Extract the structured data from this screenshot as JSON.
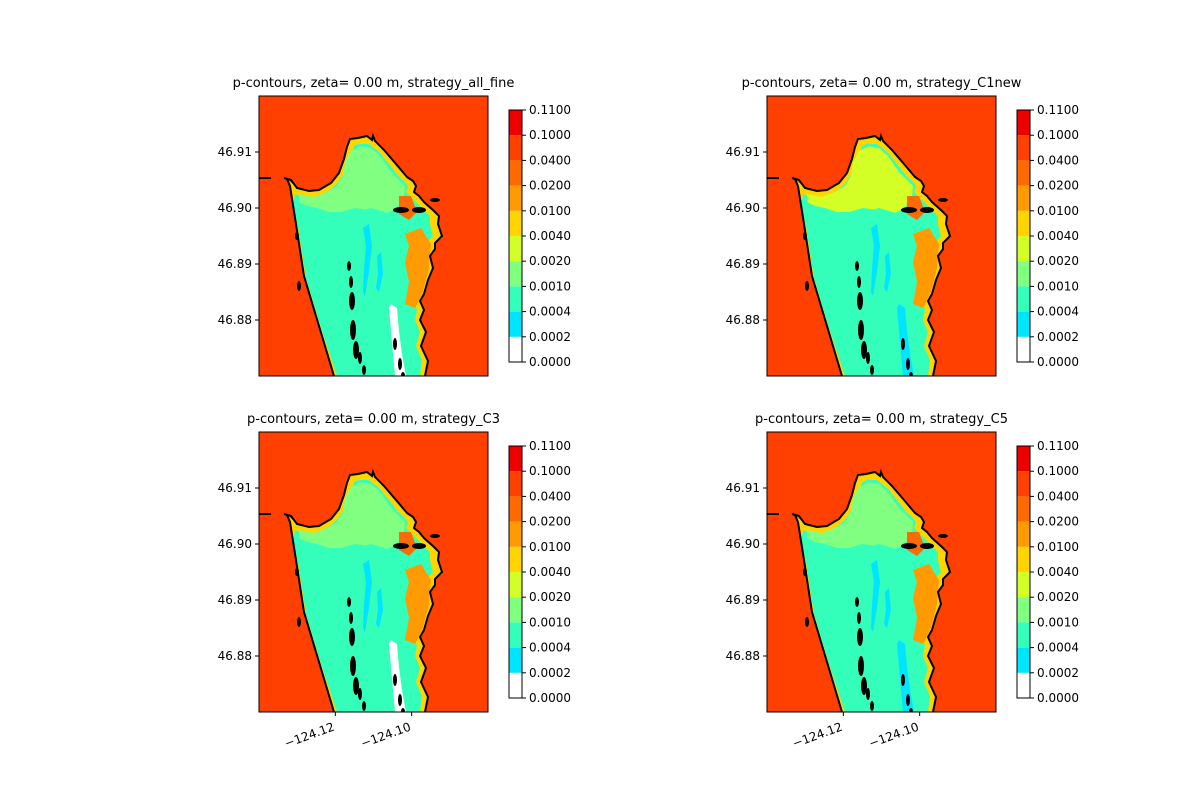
{
  "figure": {
    "background": "#ffffff",
    "sea_color": "#ff4000",
    "coast_color": "#000000"
  },
  "colorbar": {
    "levels": [
      "0.0000",
      "0.0002",
      "0.0004",
      "0.0010",
      "0.0020",
      "0.0040",
      "0.0100",
      "0.0200",
      "0.0400",
      "0.1000",
      "0.1100"
    ],
    "colors": [
      "#ffffff",
      "#00e5ff",
      "#33ffbb",
      "#80ff80",
      "#d4ff26",
      "#ffd400",
      "#ff9a00",
      "#ff6a00",
      "#ff4000",
      "#ee0000"
    ]
  },
  "chart_data": [
    {
      "type": "heatmap",
      "title": "p-contours, zeta= 0.00 m, strategy_all_fine",
      "yticks": [
        "46.91",
        "46.90",
        "46.89",
        "46.88"
      ],
      "ytick_values": [
        46.91,
        46.9,
        46.89,
        46.88
      ],
      "xticks": [],
      "xtick_values": [
        -124.12,
        -124.1
      ],
      "xlim": [
        -124.14,
        -124.08
      ],
      "ylim": [
        46.87,
        46.92
      ],
      "dominant_level": "0.0010-0.0020",
      "has_gap_band": true
    },
    {
      "type": "heatmap",
      "title": "p-contours, zeta= 0.00 m, strategy_C1new",
      "yticks": [
        "46.91",
        "46.90",
        "46.89",
        "46.88"
      ],
      "ytick_values": [
        46.91,
        46.9,
        46.89,
        46.88
      ],
      "xticks": [],
      "xtick_values": [
        -124.12,
        -124.1
      ],
      "xlim": [
        -124.14,
        -124.08
      ],
      "ylim": [
        46.87,
        46.92
      ],
      "dominant_level": "0.0004-0.0010",
      "has_gap_band": false
    },
    {
      "type": "heatmap",
      "title": "p-contours, zeta= 0.00 m, strategy_C3",
      "yticks": [
        "46.91",
        "46.90",
        "46.89",
        "46.88"
      ],
      "ytick_values": [
        46.91,
        46.9,
        46.89,
        46.88
      ],
      "xticks": [
        "−124.12",
        "−124.10"
      ],
      "xtick_values": [
        -124.12,
        -124.1
      ],
      "xlim": [
        -124.14,
        -124.08
      ],
      "ylim": [
        46.87,
        46.92
      ],
      "dominant_level": "0.0010-0.0020",
      "has_gap_band": true
    },
    {
      "type": "heatmap",
      "title": "p-contours, zeta= 0.00 m, strategy_C5",
      "yticks": [
        "46.91",
        "46.90",
        "46.89",
        "46.88"
      ],
      "ytick_values": [
        46.91,
        46.9,
        46.89,
        46.88
      ],
      "xticks": [
        "−124.12",
        "−124.10"
      ],
      "xtick_values": [
        -124.12,
        -124.1
      ],
      "xlim": [
        -124.14,
        -124.08
      ],
      "ylim": [
        46.87,
        46.92
      ],
      "dominant_level": "0.0010-0.0020",
      "has_gap_band": false
    }
  ]
}
